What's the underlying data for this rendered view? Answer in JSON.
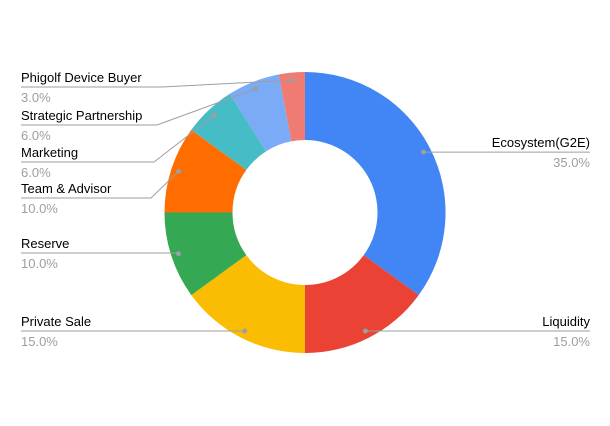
{
  "chart_data": {
    "type": "pie",
    "title": "",
    "donut": true,
    "hole_ratio": 0.52,
    "start_angle_deg": 0,
    "direction": "clockwise",
    "total": 100,
    "legend_position": "labeled",
    "slices": [
      {
        "label": "Ecosystem(G2E)",
        "value": 35.0,
        "pct_label": "35.0%",
        "color": "#4285F4",
        "label_side": "right"
      },
      {
        "label": "Liquidity",
        "value": 15.0,
        "pct_label": "15.0%",
        "color": "#EA4335",
        "label_side": "right"
      },
      {
        "label": "Private Sale",
        "value": 15.0,
        "pct_label": "15.0%",
        "color": "#FBBC04",
        "label_side": "left"
      },
      {
        "label": "Reserve",
        "value": 10.0,
        "pct_label": "10.0%",
        "color": "#34A853",
        "label_side": "left"
      },
      {
        "label": "Team & Advisor",
        "value": 10.0,
        "pct_label": "10.0%",
        "color": "#FF6D01",
        "label_side": "left"
      },
      {
        "label": "Marketing",
        "value": 6.0,
        "pct_label": "6.0%",
        "color": "#46BDC6",
        "label_side": "left"
      },
      {
        "label": "Strategic Partnership",
        "value": 6.0,
        "pct_label": "6.0%",
        "color": "#7BAAF7",
        "label_side": "left"
      },
      {
        "label": "Phigolf Device Buyer",
        "value": 3.0,
        "pct_label": "3.0%",
        "color": "#F07B72",
        "label_side": "left"
      }
    ],
    "colors": {
      "label_text": "#000000",
      "pct_text": "#9E9E9E",
      "leader_line": "#9E9E9E",
      "leader_dot": "#9E9E9E",
      "background": "#FFFFFF"
    }
  }
}
